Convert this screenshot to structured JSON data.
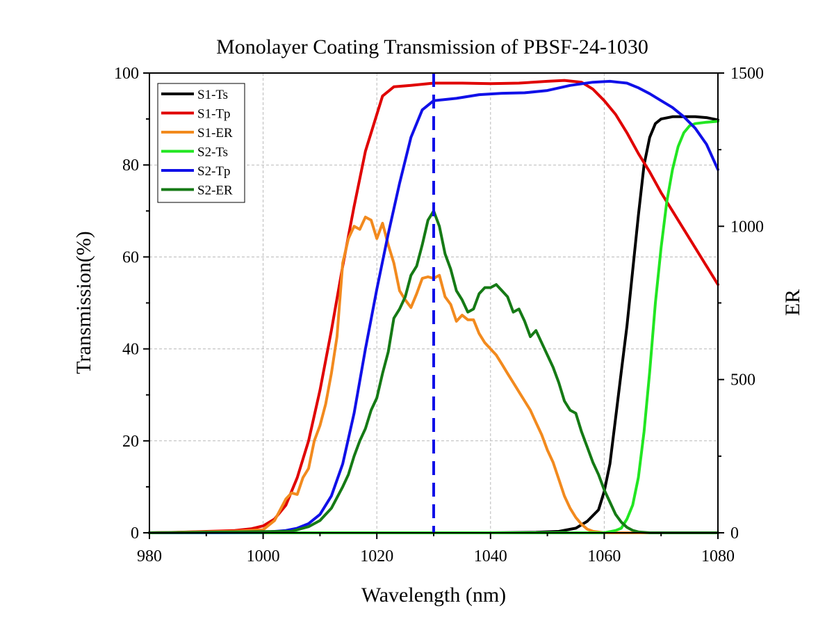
{
  "chart_data": {
    "type": "line",
    "title": "Monolayer Coating Transmission of PBSF-24-1030",
    "xlabel": "Wavelength (nm)",
    "ylabel": "Transmission(%)",
    "y2label": "ER",
    "xlim": [
      980,
      1080
    ],
    "ylim": [
      0,
      100
    ],
    "y2lim": [
      0,
      1500
    ],
    "xticks": [
      980,
      1000,
      1020,
      1040,
      1060,
      1080
    ],
    "yticks": [
      0,
      20,
      40,
      60,
      80,
      100
    ],
    "y2ticks": [
      0,
      500,
      1000,
      1500
    ],
    "grid": true,
    "legend_position": "top-left",
    "reference_line": {
      "x": 1030,
      "color": "#1010e8",
      "style": "dashed"
    },
    "series": [
      {
        "name": "S1-Ts",
        "axis": "left",
        "color": "#000000",
        "points": [
          [
            980,
            0
          ],
          [
            1040,
            0
          ],
          [
            1048,
            0.1
          ],
          [
            1052,
            0.3
          ],
          [
            1055,
            1
          ],
          [
            1057,
            2.5
          ],
          [
            1059,
            5
          ],
          [
            1060,
            9
          ],
          [
            1061,
            15
          ],
          [
            1062,
            25
          ],
          [
            1063,
            35
          ],
          [
            1064,
            45
          ],
          [
            1065,
            57
          ],
          [
            1066,
            69
          ],
          [
            1067,
            80
          ],
          [
            1068,
            86
          ],
          [
            1069,
            89
          ],
          [
            1070,
            90
          ],
          [
            1072,
            90.5
          ],
          [
            1076,
            90.5
          ],
          [
            1078,
            90.3
          ],
          [
            1080,
            89.8
          ]
        ]
      },
      {
        "name": "S1-Tp",
        "axis": "left",
        "color": "#e00000",
        "points": [
          [
            980,
            0
          ],
          [
            985,
            0.1
          ],
          [
            990,
            0.3
          ],
          [
            995,
            0.5
          ],
          [
            998,
            0.9
          ],
          [
            1000,
            1.5
          ],
          [
            1002,
            3
          ],
          [
            1004,
            6
          ],
          [
            1006,
            12
          ],
          [
            1008,
            20
          ],
          [
            1010,
            31
          ],
          [
            1012,
            44
          ],
          [
            1014,
            58
          ],
          [
            1016,
            71
          ],
          [
            1018,
            83
          ],
          [
            1020,
            91
          ],
          [
            1021,
            95
          ],
          [
            1023,
            97
          ],
          [
            1026,
            97.3
          ],
          [
            1030,
            97.8
          ],
          [
            1035,
            97.8
          ],
          [
            1040,
            97.7
          ],
          [
            1045,
            97.8
          ],
          [
            1050,
            98.2
          ],
          [
            1053,
            98.4
          ],
          [
            1056,
            98
          ],
          [
            1058,
            96.5
          ],
          [
            1060,
            94
          ],
          [
            1062,
            91
          ],
          [
            1064,
            87
          ],
          [
            1066,
            82.5
          ],
          [
            1068,
            78.5
          ],
          [
            1070,
            74
          ],
          [
            1072,
            70
          ],
          [
            1074,
            66
          ],
          [
            1076,
            62
          ],
          [
            1078,
            58
          ],
          [
            1080,
            54
          ]
        ]
      },
      {
        "name": "S1-ER",
        "axis": "right",
        "color": "#f28a1e",
        "points": [
          [
            980,
            0
          ],
          [
            995,
            5
          ],
          [
            1000,
            10
          ],
          [
            1002,
            40
          ],
          [
            1004,
            110
          ],
          [
            1005,
            130
          ],
          [
            1006,
            125
          ],
          [
            1007,
            180
          ],
          [
            1008,
            210
          ],
          [
            1009,
            300
          ],
          [
            1010,
            350
          ],
          [
            1011,
            420
          ],
          [
            1012,
            520
          ],
          [
            1013,
            640
          ],
          [
            1014,
            880
          ],
          [
            1015,
            960
          ],
          [
            1016,
            1000
          ],
          [
            1017,
            990
          ],
          [
            1018,
            1030
          ],
          [
            1019,
            1020
          ],
          [
            1020,
            960
          ],
          [
            1021,
            1010
          ],
          [
            1022,
            940
          ],
          [
            1023,
            880
          ],
          [
            1024,
            790
          ],
          [
            1025,
            760
          ],
          [
            1026,
            735
          ],
          [
            1027,
            780
          ],
          [
            1028,
            830
          ],
          [
            1029,
            835
          ],
          [
            1030,
            830
          ],
          [
            1031,
            840
          ],
          [
            1032,
            770
          ],
          [
            1033,
            745
          ],
          [
            1034,
            690
          ],
          [
            1035,
            710
          ],
          [
            1036,
            695
          ],
          [
            1037,
            695
          ],
          [
            1038,
            650
          ],
          [
            1039,
            620
          ],
          [
            1040,
            600
          ],
          [
            1041,
            580
          ],
          [
            1042,
            550
          ],
          [
            1043,
            520
          ],
          [
            1044,
            490
          ],
          [
            1045,
            460
          ],
          [
            1046,
            430
          ],
          [
            1047,
            400
          ],
          [
            1048,
            360
          ],
          [
            1049,
            320
          ],
          [
            1050,
            270
          ],
          [
            1051,
            230
          ],
          [
            1052,
            175
          ],
          [
            1053,
            120
          ],
          [
            1054,
            80
          ],
          [
            1055,
            50
          ],
          [
            1056,
            28
          ],
          [
            1057,
            12
          ],
          [
            1058,
            5
          ],
          [
            1060,
            0
          ],
          [
            1080,
            0
          ]
        ]
      },
      {
        "name": "S2-Ts",
        "axis": "left",
        "color": "#22e622",
        "points": [
          [
            980,
            0
          ],
          [
            1060,
            0
          ],
          [
            1062,
            0.5
          ],
          [
            1063,
            1
          ],
          [
            1064,
            3
          ],
          [
            1065,
            6
          ],
          [
            1066,
            12
          ],
          [
            1067,
            22
          ],
          [
            1068,
            35
          ],
          [
            1069,
            50
          ],
          [
            1070,
            62
          ],
          [
            1071,
            72
          ],
          [
            1072,
            79
          ],
          [
            1073,
            84
          ],
          [
            1074,
            87
          ],
          [
            1075,
            88.5
          ],
          [
            1076,
            89
          ],
          [
            1078,
            89.3
          ],
          [
            1080,
            89.5
          ]
        ]
      },
      {
        "name": "S2-Tp",
        "axis": "left",
        "color": "#1010e8",
        "points": [
          [
            980,
            0
          ],
          [
            1000,
            0.1
          ],
          [
            1004,
            0.5
          ],
          [
            1006,
            1
          ],
          [
            1008,
            2
          ],
          [
            1010,
            4
          ],
          [
            1012,
            8
          ],
          [
            1014,
            15
          ],
          [
            1016,
            26
          ],
          [
            1018,
            40
          ],
          [
            1020,
            53
          ],
          [
            1022,
            65
          ],
          [
            1024,
            76
          ],
          [
            1026,
            86
          ],
          [
            1028,
            92
          ],
          [
            1030,
            94
          ],
          [
            1034,
            94.5
          ],
          [
            1038,
            95.3
          ],
          [
            1042,
            95.6
          ],
          [
            1046,
            95.7
          ],
          [
            1050,
            96.2
          ],
          [
            1054,
            97.3
          ],
          [
            1058,
            98
          ],
          [
            1061,
            98.2
          ],
          [
            1064,
            97.8
          ],
          [
            1066,
            96.8
          ],
          [
            1068,
            95.5
          ],
          [
            1070,
            94
          ],
          [
            1072,
            92.5
          ],
          [
            1074,
            90.5
          ],
          [
            1076,
            88
          ],
          [
            1078,
            84.5
          ],
          [
            1080,
            79
          ]
        ]
      },
      {
        "name": "S2-ER",
        "axis": "right",
        "color": "#157a15",
        "points": [
          [
            980,
            0
          ],
          [
            1005,
            5
          ],
          [
            1008,
            20
          ],
          [
            1010,
            40
          ],
          [
            1012,
            80
          ],
          [
            1014,
            150
          ],
          [
            1015,
            190
          ],
          [
            1016,
            250
          ],
          [
            1017,
            300
          ],
          [
            1018,
            340
          ],
          [
            1019,
            400
          ],
          [
            1020,
            440
          ],
          [
            1021,
            520
          ],
          [
            1022,
            590
          ],
          [
            1023,
            700
          ],
          [
            1024,
            730
          ],
          [
            1025,
            770
          ],
          [
            1026,
            840
          ],
          [
            1027,
            870
          ],
          [
            1028,
            940
          ],
          [
            1029,
            1020
          ],
          [
            1030,
            1050
          ],
          [
            1031,
            1000
          ],
          [
            1032,
            910
          ],
          [
            1033,
            860
          ],
          [
            1034,
            790
          ],
          [
            1035,
            760
          ],
          [
            1036,
            720
          ],
          [
            1037,
            730
          ],
          [
            1038,
            780
          ],
          [
            1039,
            800
          ],
          [
            1040,
            800
          ],
          [
            1041,
            810
          ],
          [
            1042,
            790
          ],
          [
            1043,
            770
          ],
          [
            1044,
            720
          ],
          [
            1045,
            730
          ],
          [
            1046,
            690
          ],
          [
            1047,
            640
          ],
          [
            1048,
            660
          ],
          [
            1049,
            620
          ],
          [
            1050,
            580
          ],
          [
            1051,
            540
          ],
          [
            1052,
            490
          ],
          [
            1053,
            430
          ],
          [
            1054,
            400
          ],
          [
            1055,
            390
          ],
          [
            1056,
            330
          ],
          [
            1057,
            280
          ],
          [
            1058,
            230
          ],
          [
            1059,
            190
          ],
          [
            1060,
            140
          ],
          [
            1061,
            100
          ],
          [
            1062,
            60
          ],
          [
            1063,
            35
          ],
          [
            1064,
            18
          ],
          [
            1065,
            8
          ],
          [
            1066,
            3
          ],
          [
            1068,
            0
          ],
          [
            1080,
            0
          ]
        ]
      }
    ]
  }
}
